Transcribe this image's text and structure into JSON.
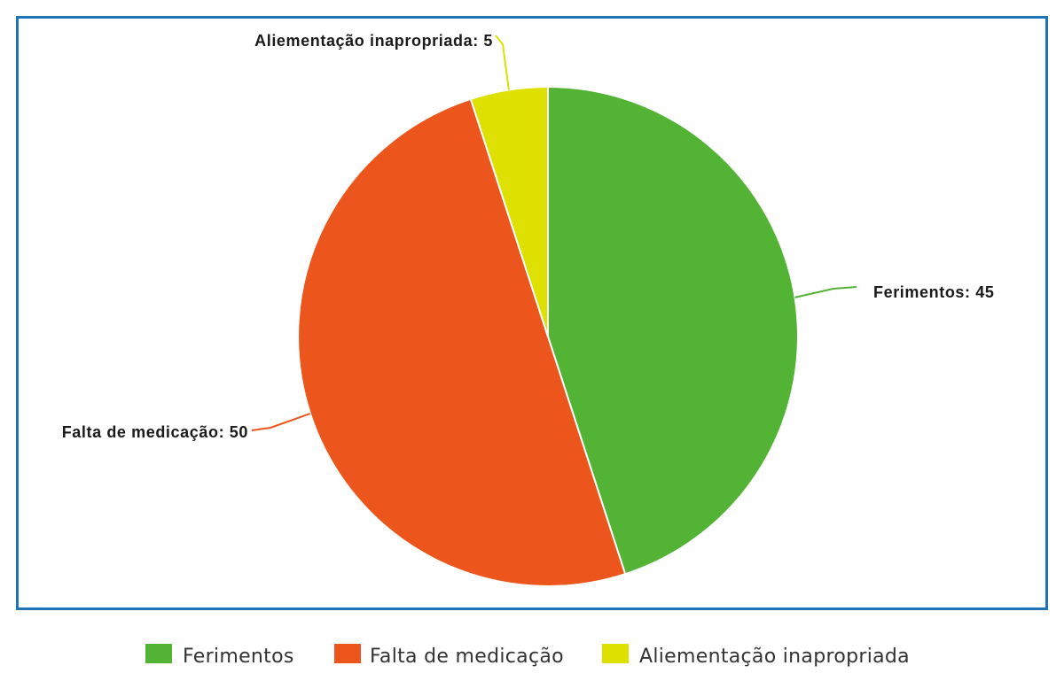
{
  "chart_data": {
    "type": "pie",
    "title": "",
    "start_angle_deg": 0,
    "direction": "clockwise",
    "slices": [
      {
        "label": "Ferimentos",
        "value": 45,
        "color": "#52b335",
        "data_label": "Ferimentos: 45"
      },
      {
        "label": "Falta de medicação",
        "value": 50,
        "color": "#ec561d",
        "data_label": "Falta de medicação: 50"
      },
      {
        "label": "Aliementação inapropriada",
        "value": 5,
        "color": "#dde000",
        "data_label": "Aliementação inapropriada: 5"
      }
    ],
    "legend": {
      "position": "bottom-center",
      "items": [
        "Ferimentos",
        "Falta de medicação",
        "Aliementação inapropriada"
      ]
    },
    "frame_color": "#1f73b7"
  }
}
